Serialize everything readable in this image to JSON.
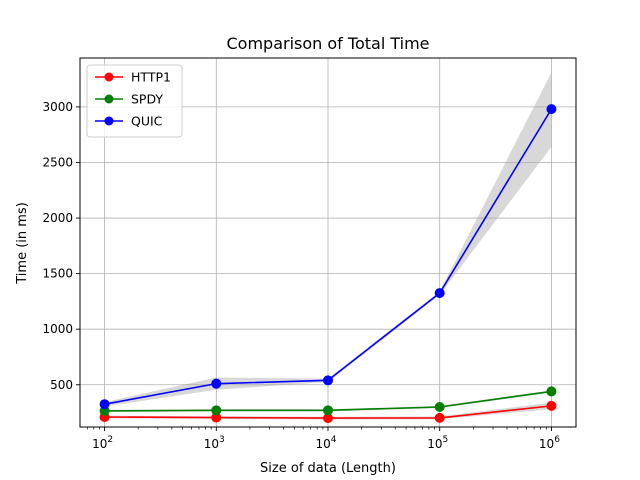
{
  "chart_data": {
    "type": "line",
    "title": "Comparison of Total Time",
    "xlabel": "Size of data (Length)",
    "ylabel": "Time (in ms)",
    "x_scale": "log",
    "x": [
      100,
      1000,
      10000,
      100000,
      1000000
    ],
    "x_ticks": [
      {
        "value": 100,
        "base": "10",
        "exp": "2"
      },
      {
        "value": 1000,
        "base": "10",
        "exp": "3"
      },
      {
        "value": 10000,
        "base": "10",
        "exp": "4"
      },
      {
        "value": 100000,
        "base": "10",
        "exp": "5"
      },
      {
        "value": 1000000,
        "base": "10",
        "exp": "6"
      }
    ],
    "y_ticks": [
      500,
      1000,
      1500,
      2000,
      2500,
      3000
    ],
    "ylim": [
      120,
      3440
    ],
    "xlim_log10": [
      1.78,
      6.22
    ],
    "grid": true,
    "legend_position": "top-left",
    "band_color": "#a9a9a9",
    "series": [
      {
        "name": "HTTP1",
        "color": "#ff0000",
        "values": [
          210,
          205,
          200,
          202,
          310
        ],
        "band_low": [
          198,
          193,
          188,
          190,
          280
        ],
        "band_high": [
          222,
          217,
          212,
          214,
          340
        ]
      },
      {
        "name": "SPDY",
        "color": "#008000",
        "values": [
          265,
          270,
          270,
          300,
          440
        ],
        "band_low": [
          255,
          260,
          260,
          290,
          430
        ],
        "band_high": [
          275,
          280,
          280,
          310,
          450
        ]
      },
      {
        "name": "QUIC",
        "color": "#0000ff",
        "values": [
          325,
          510,
          540,
          1325,
          2980
        ],
        "band_low": [
          305,
          455,
          525,
          1310,
          2640
        ],
        "band_high": [
          345,
          565,
          555,
          1340,
          3310
        ]
      }
    ]
  }
}
